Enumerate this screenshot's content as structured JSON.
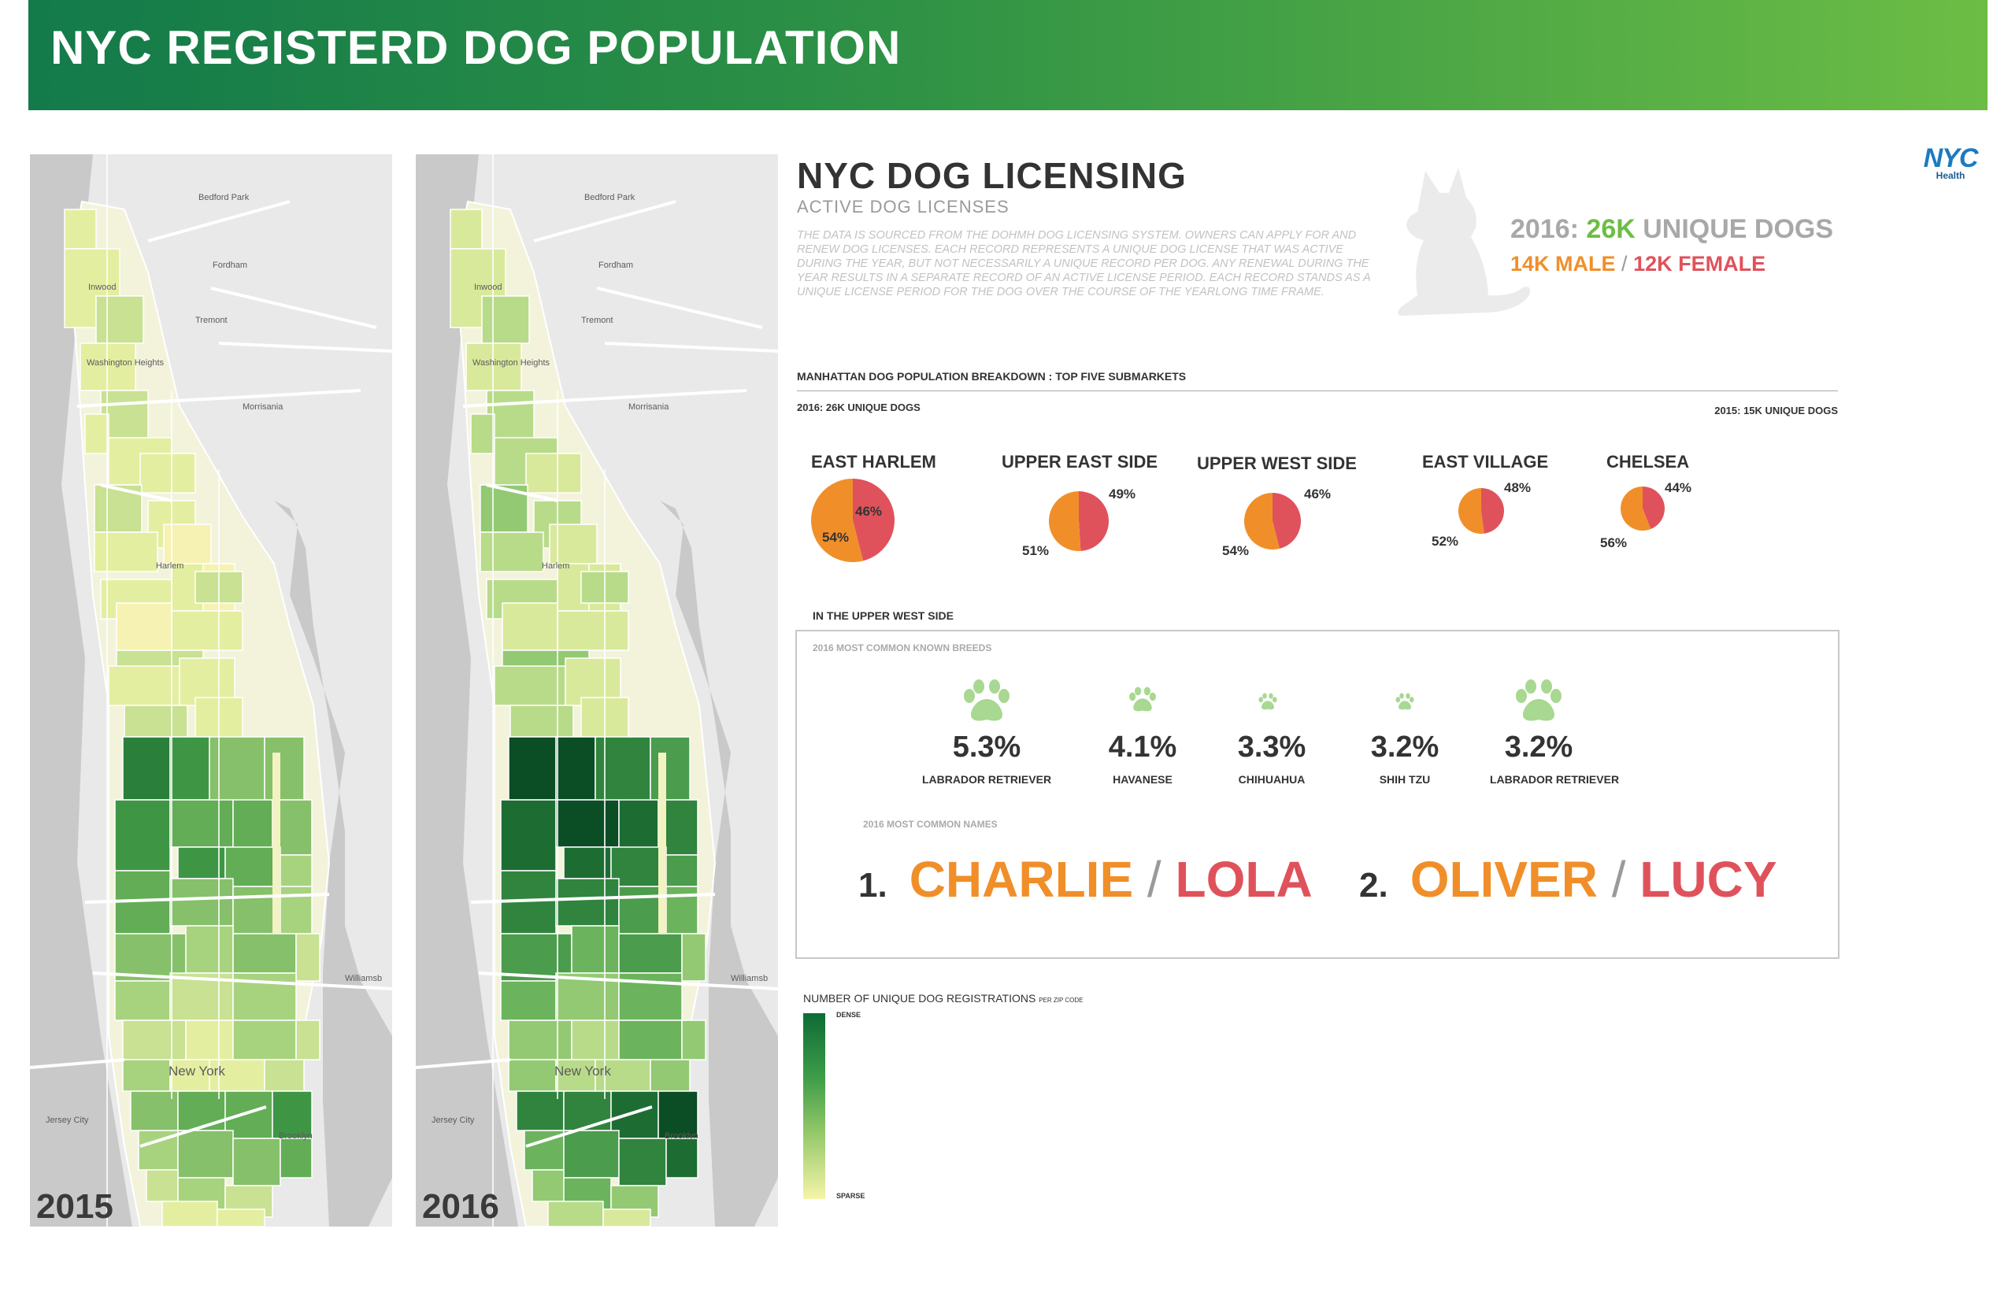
{
  "header": {
    "title": "NYC REGISTERD DOG POPULATION"
  },
  "maps": [
    {
      "year": "2015",
      "labels": [
        "Bedford Park",
        "Inwood",
        "Fordham",
        "Tremont",
        "Washington Heights",
        "Morrisania",
        "Harlem",
        "New York",
        "Williamsb",
        "Jersey City",
        "Brooklyn"
      ]
    },
    {
      "year": "2016",
      "labels": [
        "Bedford Park",
        "Inwood",
        "Fordham",
        "Tremont",
        "Washington Heights",
        "Morrisania",
        "Harlem",
        "New York",
        "Williamsb",
        "Jersey City",
        "Brooklyn"
      ]
    }
  ],
  "licensing": {
    "title": "NYC DOG LICENSING",
    "subtitle": "ACTIVE DOG LICENSES",
    "description": "THE DATA IS SOURCED FROM THE DOHMH DOG LICENSING SYSTEM. OWNERS CAN APPLY FOR AND RENEW DOG LICENSES. EACH RECORD REPRESENTS A UNIQUE DOG LICENSE THAT WAS ACTIVE DURING THE YEAR, BUT NOT NECESSARILY A UNIQUE RECORD PER DOG. ANY RENEWAL DURING THE YEAR RESULTS IN A SEPARATE RECORD OF AN ACTIVE LICENSE PERIOD. EACH RECORD STANDS AS A UNIQUE LICENSE PERIOD FOR THE DOG OVER THE COURSE OF THE YEARLONG TIME FRAME."
  },
  "logo": {
    "word": "NYC",
    "sub": "Health"
  },
  "stats": {
    "year_label": "2016:",
    "count": "26K",
    "count_suffix": "UNIQUE DOGS",
    "male": "14K MALE",
    "separator": "/",
    "female": "12K FEMALE"
  },
  "breakdown": {
    "title": "MANHATTAN DOG POPULATION BREAKDOWN : TOP FIVE SUBMARKETS",
    "left_label": "2016: 26K UNIQUE DOGS",
    "right_label": "2015: 15K UNIQUE DOGS"
  },
  "colors": {
    "male": "#f08f2a",
    "female": "#e0525b",
    "accent": "#6cbd45",
    "paw": "#a8d891"
  },
  "chart_data": {
    "type": "pie",
    "series_order": [
      "male",
      "female"
    ],
    "slices": [
      {
        "name": "EAST HARLEM",
        "male": 54,
        "female": 46,
        "male_label": "54%",
        "female_label": "46%"
      },
      {
        "name": "UPPER EAST SIDE",
        "male": 51,
        "female": 49,
        "male_label": "51%",
        "female_label": "49%"
      },
      {
        "name": "UPPER WEST SIDE",
        "male": 54,
        "female": 46,
        "male_label": "54%",
        "female_label": "46%"
      },
      {
        "name": "EAST VILLAGE",
        "male": 52,
        "female": 48,
        "male_label": "52%",
        "female_label": "48%"
      },
      {
        "name": "CHELSEA",
        "male": 56,
        "female": 44,
        "male_label": "56%",
        "female_label": "44%"
      }
    ]
  },
  "uws": {
    "title": "IN THE UPPER WEST SIDE",
    "breeds_heading": "2016 MOST COMMON KNOWN BREEDS",
    "breeds": [
      {
        "pct": "5.3%",
        "name": "LABRADOR RETRIEVER",
        "share": 5.3
      },
      {
        "pct": "4.1%",
        "name": "HAVANESE",
        "share": 4.1
      },
      {
        "pct": "3.3%",
        "name": "CHIHUAHUA",
        "share": 3.3
      },
      {
        "pct": "3.2%",
        "name": "SHIH TZU",
        "share": 3.2
      },
      {
        "pct": "3.2%",
        "name": "LABRADOR RETRIEVER",
        "share": 3.2
      }
    ],
    "names_heading": "2016 MOST COMMON NAMES",
    "names": [
      {
        "rank": "1.",
        "male": "CHARLIE",
        "female": "LOLA"
      },
      {
        "rank": "2.",
        "male": "OLIVER",
        "female": "LUCY"
      }
    ]
  },
  "legend": {
    "title": "NUMBER OF UNIQUE DOG REGISTRATIONS",
    "title_small": "PER ZIP CODE",
    "dense": "DENSE",
    "sparse": "SPARSE"
  }
}
